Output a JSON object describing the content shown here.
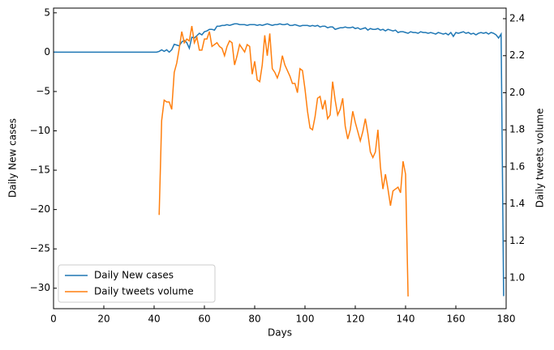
{
  "chart_data": {
    "type": "line",
    "xlabel": "Days",
    "ylabel": "Daily New cases",
    "y2label": "Daily tweets volume",
    "x": [
      0,
      1,
      2,
      3,
      4,
      5,
      6,
      7,
      8,
      9,
      10,
      11,
      12,
      13,
      14,
      15,
      16,
      17,
      18,
      19,
      20,
      21,
      22,
      23,
      24,
      25,
      26,
      27,
      28,
      29,
      30,
      31,
      32,
      33,
      34,
      35,
      36,
      37,
      38,
      39,
      40,
      41,
      42,
      43,
      44,
      45,
      46,
      47,
      48,
      49,
      50,
      51,
      52,
      53,
      54,
      55,
      56,
      57,
      58,
      59,
      60,
      61,
      62,
      63,
      64,
      65,
      66,
      67,
      68,
      69,
      70,
      71,
      72,
      73,
      74,
      75,
      76,
      77,
      78,
      79,
      80,
      81,
      82,
      83,
      84,
      85,
      86,
      87,
      88,
      89,
      90,
      91,
      92,
      93,
      94,
      95,
      96,
      97,
      98,
      99,
      100,
      101,
      102,
      103,
      104,
      105,
      106,
      107,
      108,
      109,
      110,
      111,
      112,
      113,
      114,
      115,
      116,
      117,
      118,
      119,
      120,
      121,
      122,
      123,
      124,
      125,
      126,
      127,
      128,
      129,
      130,
      131,
      132,
      133,
      134,
      135,
      136,
      137,
      138,
      139,
      140,
      141,
      142,
      143,
      144,
      145,
      146,
      147,
      148,
      149,
      150,
      151,
      152,
      153,
      154,
      155,
      156,
      157,
      158,
      159,
      160,
      161,
      162,
      163,
      164,
      165,
      166,
      167,
      168,
      169,
      170,
      171,
      172,
      173,
      174,
      175,
      176,
      177,
      178,
      179
    ],
    "series": [
      {
        "name": "Daily New cases",
        "color": "#1f77b4",
        "axis": "y",
        "values": [
          0,
          0,
          0,
          0,
          0,
          0,
          0,
          0,
          0,
          0,
          0,
          0,
          0,
          0,
          0,
          0,
          0,
          0,
          0,
          0,
          0,
          0,
          0,
          0,
          0,
          0,
          0,
          0,
          0,
          0,
          0,
          0,
          0,
          0,
          0,
          0,
          0,
          0,
          0,
          0,
          0,
          0,
          0.1,
          0.3,
          0.1,
          0.3,
          0.0,
          0.3,
          1.0,
          0.9,
          0.8,
          1.3,
          1.5,
          1.2,
          0.5,
          1.9,
          1.8,
          2.1,
          2.4,
          2.2,
          2.6,
          2.7,
          2.9,
          2.9,
          2.8,
          3.3,
          3.3,
          3.4,
          3.4,
          3.5,
          3.4,
          3.5,
          3.6,
          3.6,
          3.5,
          3.5,
          3.5,
          3.4,
          3.5,
          3.5,
          3.5,
          3.4,
          3.5,
          3.4,
          3.5,
          3.6,
          3.5,
          3.4,
          3.5,
          3.5,
          3.6,
          3.5,
          3.5,
          3.6,
          3.4,
          3.4,
          3.5,
          3.4,
          3.3,
          3.4,
          3.4,
          3.4,
          3.3,
          3.4,
          3.3,
          3.4,
          3.2,
          3.3,
          3.3,
          3.1,
          3.2,
          3.2,
          2.9,
          3.0,
          3.1,
          3.1,
          3.2,
          3.1,
          3.1,
          3.2,
          3.0,
          3.1,
          2.9,
          3.0,
          3.1,
          2.8,
          3.0,
          2.9,
          2.9,
          3.0,
          2.8,
          2.9,
          2.7,
          2.9,
          2.8,
          2.7,
          2.8,
          2.5,
          2.6,
          2.6,
          2.5,
          2.4,
          2.6,
          2.5,
          2.5,
          2.4,
          2.6,
          2.5,
          2.5,
          2.4,
          2.5,
          2.4,
          2.3,
          2.5,
          2.4,
          2.3,
          2.4,
          2.2,
          2.5,
          2.0,
          2.5,
          2.4,
          2.5,
          2.6,
          2.4,
          2.5,
          2.3,
          2.4,
          2.2,
          2.4,
          2.5,
          2.4,
          2.5,
          2.3,
          2.5,
          2.4,
          2.2,
          1.8,
          2.3,
          -31
        ]
      },
      {
        "name": "Daily tweets volume",
        "color": "#ff7f0e",
        "axis": "y2",
        "values": [
          null,
          null,
          null,
          null,
          null,
          null,
          null,
          null,
          null,
          null,
          null,
          null,
          null,
          null,
          null,
          null,
          null,
          null,
          null,
          null,
          null,
          null,
          null,
          null,
          null,
          null,
          null,
          null,
          null,
          null,
          null,
          null,
          null,
          null,
          null,
          null,
          null,
          null,
          null,
          null,
          null,
          null,
          1.34,
          1.85,
          1.96,
          1.95,
          1.95,
          1.91,
          2.11,
          2.16,
          2.24,
          2.33,
          2.27,
          2.29,
          2.28,
          2.36,
          2.27,
          2.3,
          2.23,
          2.23,
          2.29,
          2.29,
          2.33,
          2.25,
          2.26,
          2.27,
          2.25,
          2.24,
          2.2,
          2.25,
          2.28,
          2.27,
          2.15,
          2.2,
          2.26,
          2.24,
          2.22,
          2.26,
          2.25,
          2.1,
          2.17,
          2.07,
          2.06,
          2.15,
          2.31,
          2.2,
          2.32,
          2.13,
          2.11,
          2.08,
          2.12,
          2.2,
          2.15,
          2.12,
          2.09,
          2.05,
          2.05,
          2.0,
          2.13,
          2.12,
          2.02,
          1.9,
          1.81,
          1.8,
          1.87,
          1.97,
          1.98,
          1.91,
          1.96,
          1.86,
          1.88,
          2.06,
          1.96,
          1.88,
          1.91,
          1.97,
          1.82,
          1.75,
          1.8,
          1.9,
          1.84,
          1.79,
          1.74,
          1.79,
          1.86,
          1.78,
          1.68,
          1.65,
          1.68,
          1.8,
          1.6,
          1.48,
          1.56,
          1.48,
          1.39,
          1.47,
          1.48,
          1.49,
          1.46,
          1.63,
          1.56,
          0.9,
          null,
          null,
          null,
          null,
          null,
          null,
          null,
          null,
          null,
          null,
          null,
          null,
          null,
          null,
          null,
          null,
          null,
          null,
          null,
          null,
          null,
          null,
          null,
          null,
          null,
          null,
          null,
          null,
          null,
          null,
          null,
          null,
          null,
          null,
          null,
          null,
          null,
          null
        ]
      }
    ],
    "xlim": [
      0,
      180
    ],
    "xticks": [
      0,
      20,
      40,
      60,
      80,
      100,
      120,
      140,
      160,
      180
    ],
    "ylim": [
      -32.6,
      5.6
    ],
    "yticks": [
      {
        "value": -30,
        "label": "−30"
      },
      {
        "value": -25,
        "label": "−25"
      },
      {
        "value": -20,
        "label": "−20"
      },
      {
        "value": -15,
        "label": "−15"
      },
      {
        "value": -10,
        "label": "−10"
      },
      {
        "value": -5,
        "label": "−5"
      },
      0,
      5
    ],
    "y2lim": [
      0.834,
      2.457
    ],
    "y2ticks": [
      {
        "value": 1,
        "label": "1.0"
      },
      1.2,
      1.4,
      1.6,
      1.8,
      {
        "value": 2,
        "label": "2.0"
      },
      2.2,
      2.4
    ],
    "legend": "lower left"
  }
}
